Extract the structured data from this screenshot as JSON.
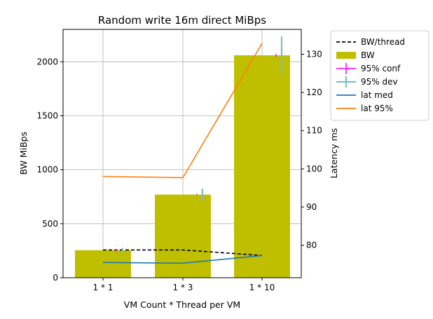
{
  "chart_data": {
    "type": "bar",
    "title": "Random write 16m direct MiBps",
    "xlabel": "VM Count * Thread per VM",
    "ylabel": "BW MiBps",
    "y2label": "Latency ms",
    "categories": [
      "1 * 1",
      "1 * 3",
      "1 * 10"
    ],
    "ylim": [
      0,
      2300
    ],
    "y2lim": [
      71.5,
      136.5
    ],
    "yticks": [
      0,
      500,
      1000,
      1500,
      2000
    ],
    "y2ticks": [
      80,
      90,
      100,
      110,
      120,
      130
    ],
    "grid": true,
    "legend_position": "outside right, top",
    "series": [
      {
        "name": "BW/thread",
        "kind": "line",
        "style": "dashed",
        "color": "#000000",
        "axis": "left",
        "values": [
          257,
          257,
          206
        ]
      },
      {
        "name": "BW",
        "kind": "bar",
        "color": "#bfbf00",
        "axis": "left",
        "values": [
          255,
          770,
          2060
        ]
      },
      {
        "name": "95% conf",
        "kind": "errorbar",
        "color": "#ff00ff",
        "axis": "left",
        "values": [
          255,
          770,
          2060
        ],
        "err": [
          5,
          5,
          12
        ]
      },
      {
        "name": "95% dev",
        "kind": "errorbar",
        "color": "#7fbfbf",
        "axis": "left",
        "values": [
          255,
          770,
          2060
        ],
        "err": [
          20,
          55,
          175
        ]
      },
      {
        "name": "lat med",
        "kind": "line",
        "style": "solid",
        "color": "#1f77b4",
        "axis": "right",
        "values": [
          75.5,
          75.3,
          77.3
        ]
      },
      {
        "name": "lat 95%",
        "kind": "line",
        "style": "solid",
        "color": "#ff7f0e",
        "axis": "right",
        "values": [
          98.0,
          97.7,
          132.8
        ]
      }
    ]
  }
}
